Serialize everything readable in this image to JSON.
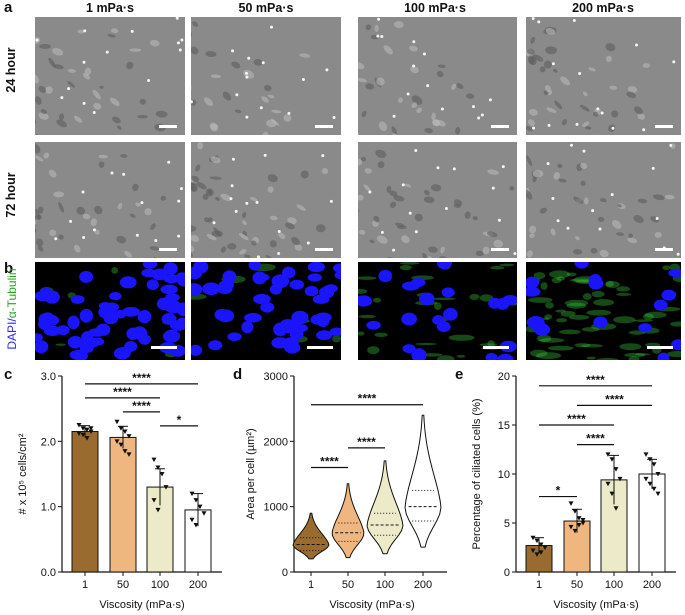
{
  "panel_labels": {
    "a": "a",
    "b": "b",
    "c": "c",
    "d": "d",
    "e": "e"
  },
  "columns": [
    "1 mPa·s",
    "50 mPa·s",
    "100 mPa·s",
    "200 mPa·s"
  ],
  "rows": [
    "24 hour",
    "72 hour"
  ],
  "stain_label": {
    "dapi": "DAPI/",
    "tubulin": "α-Tubulin"
  },
  "colors": {
    "c1": "#9a6b2f",
    "c50": "#efb77f",
    "c100": "#eceac8",
    "c200": "#ffffff",
    "dapi": "#1a14ff",
    "tubulin": "#3bd03b"
  },
  "chart_data": [
    {
      "type": "bar",
      "panel": "c",
      "categories": [
        "1",
        "50",
        "100",
        "200"
      ],
      "values": [
        2.15,
        2.06,
        1.3,
        0.95
      ],
      "errors": [
        0.09,
        0.17,
        0.28,
        0.25
      ],
      "points": [
        [
          2.25,
          2.2,
          2.18,
          2.15,
          2.12,
          2.1,
          2.05,
          2.2
        ],
        [
          2.3,
          2.2,
          2.15,
          2.08,
          2.0,
          1.95,
          1.85,
          1.8
        ],
        [
          1.72,
          1.6,
          1.5,
          1.3,
          1.1,
          0.95
        ],
        [
          1.2,
          1.1,
          1.0,
          0.9,
          0.8,
          0.72
        ]
      ],
      "ylabel": "# x 10⁵ cells/cm²",
      "xlabel": "Viscosity (mPa·s)",
      "yticks": [
        "0.0",
        "1.0",
        "2.0",
        "3.0"
      ],
      "ylim": [
        0,
        3
      ],
      "brackets": [
        {
          "from": 0,
          "to": 3,
          "label": "****"
        },
        {
          "from": 0,
          "to": 2,
          "label": "****"
        },
        {
          "from": 1,
          "to": 2,
          "label": "****"
        },
        {
          "from": 2,
          "to": 3,
          "label": "*"
        }
      ]
    },
    {
      "type": "violin",
      "panel": "d",
      "categories": [
        "1",
        "50",
        "100",
        "200"
      ],
      "medians": [
        420,
        600,
        720,
        1000
      ],
      "ranges": [
        [
          200,
          900
        ],
        [
          220,
          1350
        ],
        [
          280,
          1700
        ],
        [
          380,
          2400
        ]
      ],
      "ylabel": "Area per cell (µm²)",
      "xlabel": "Viscosity (mPa·s)",
      "yticks": [
        "0",
        "1000",
        "2000",
        "3000"
      ],
      "ylim": [
        0,
        3000
      ],
      "brackets": [
        {
          "from": 0,
          "to": 3,
          "label": "****"
        },
        {
          "from": 0,
          "to": 1,
          "label": "****"
        },
        {
          "from": 1,
          "to": 2,
          "label": "****"
        }
      ]
    },
    {
      "type": "bar",
      "panel": "e",
      "categories": [
        "1",
        "50",
        "100",
        "200"
      ],
      "values": [
        2.7,
        5.2,
        9.4,
        10.0
      ],
      "errors": [
        0.8,
        1.2,
        2.5,
        1.5
      ],
      "points": [
        [
          3.5,
          3.2,
          2.8,
          2.5,
          2.2,
          1.8,
          2.0
        ],
        [
          7.0,
          6.2,
          5.5,
          5.0,
          4.6,
          4.2,
          4.8,
          5.3
        ],
        [
          12.0,
          11.5,
          10.5,
          9.5,
          9.0,
          8.0,
          6.5
        ],
        [
          12.0,
          11.5,
          11.0,
          10.0,
          9.5,
          9.0,
          8.5,
          8.0
        ]
      ],
      "ylabel": "Percentage of ciliated cells (%)",
      "xlabel": "Viscosity (mPa·s)",
      "yticks": [
        "0",
        "5",
        "10",
        "15",
        "20"
      ],
      "ylim": [
        0,
        20
      ],
      "brackets": [
        {
          "from": 0,
          "to": 3,
          "label": "****"
        },
        {
          "from": 1,
          "to": 3,
          "label": "****"
        },
        {
          "from": 0,
          "to": 2,
          "label": "****"
        },
        {
          "from": 1,
          "to": 2,
          "label": "****"
        },
        {
          "from": 0,
          "to": 1,
          "label": "*"
        }
      ]
    }
  ]
}
